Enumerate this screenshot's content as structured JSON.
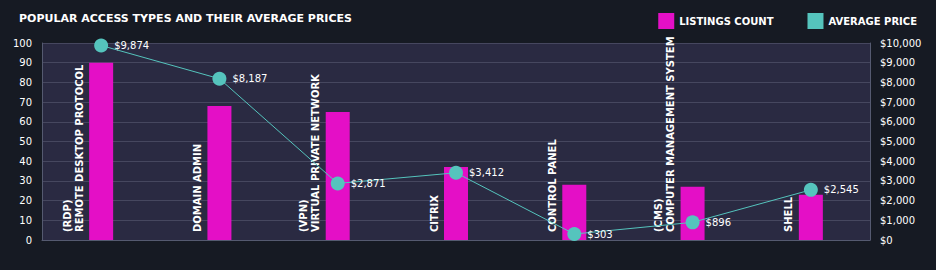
{
  "chart_data": {
    "type": "bar",
    "title": "POPULAR ACCESS TYPES AND THEIR AVERAGE PRICES",
    "categories": [
      "(RDP)\nREMOTE DESKTOP PROTOCOL",
      "DOMAIN ADMIN",
      "(VPN)\nVIRTUAL PRIVATE NETWORK",
      "CITRIX",
      "CONTROL PANEL",
      "(CMS)\nCOMPUTER MANAGEMENT SYSTEM",
      "SHELL"
    ],
    "series": [
      {
        "name": "LISTINGS COUNT",
        "type": "bar",
        "color": "#e40fc6",
        "values": [
          90,
          68,
          65,
          37,
          28,
          27,
          23
        ]
      },
      {
        "name": "AVERAGE PRICE",
        "type": "line",
        "axis": "y2",
        "color": "#55c4bd",
        "marker": "circle",
        "data_labels": true,
        "values": [
          9874,
          8187,
          2871,
          3412,
          303,
          896,
          2545
        ],
        "value_labels": [
          "$9,874",
          "$8,187",
          "$2,871",
          "$3,412",
          "$303",
          "$896",
          "$2,545"
        ]
      }
    ],
    "ylim": [
      0,
      100
    ],
    "yticks": [
      0,
      10,
      20,
      30,
      40,
      50,
      60,
      70,
      80,
      90,
      100
    ],
    "y2lim": [
      0,
      10000
    ],
    "y2ticks": [
      {
        "value": 0,
        "label": "$0"
      },
      {
        "value": 1000,
        "label": "$1,000"
      },
      {
        "value": 2000,
        "label": "$2,000"
      },
      {
        "value": 3000,
        "label": "$3,000"
      },
      {
        "value": 4000,
        "label": "$4,000"
      },
      {
        "value": 5000,
        "label": "$5,000"
      },
      {
        "value": 6000,
        "label": "$6,000"
      },
      {
        "value": 7000,
        "label": "$7,000"
      },
      {
        "value": 8000,
        "label": "$8,000"
      },
      {
        "value": 9000,
        "label": "$9,000"
      },
      {
        "value": 10000,
        "label": "$10,000"
      }
    ],
    "grid": true,
    "legend": "upper right"
  }
}
